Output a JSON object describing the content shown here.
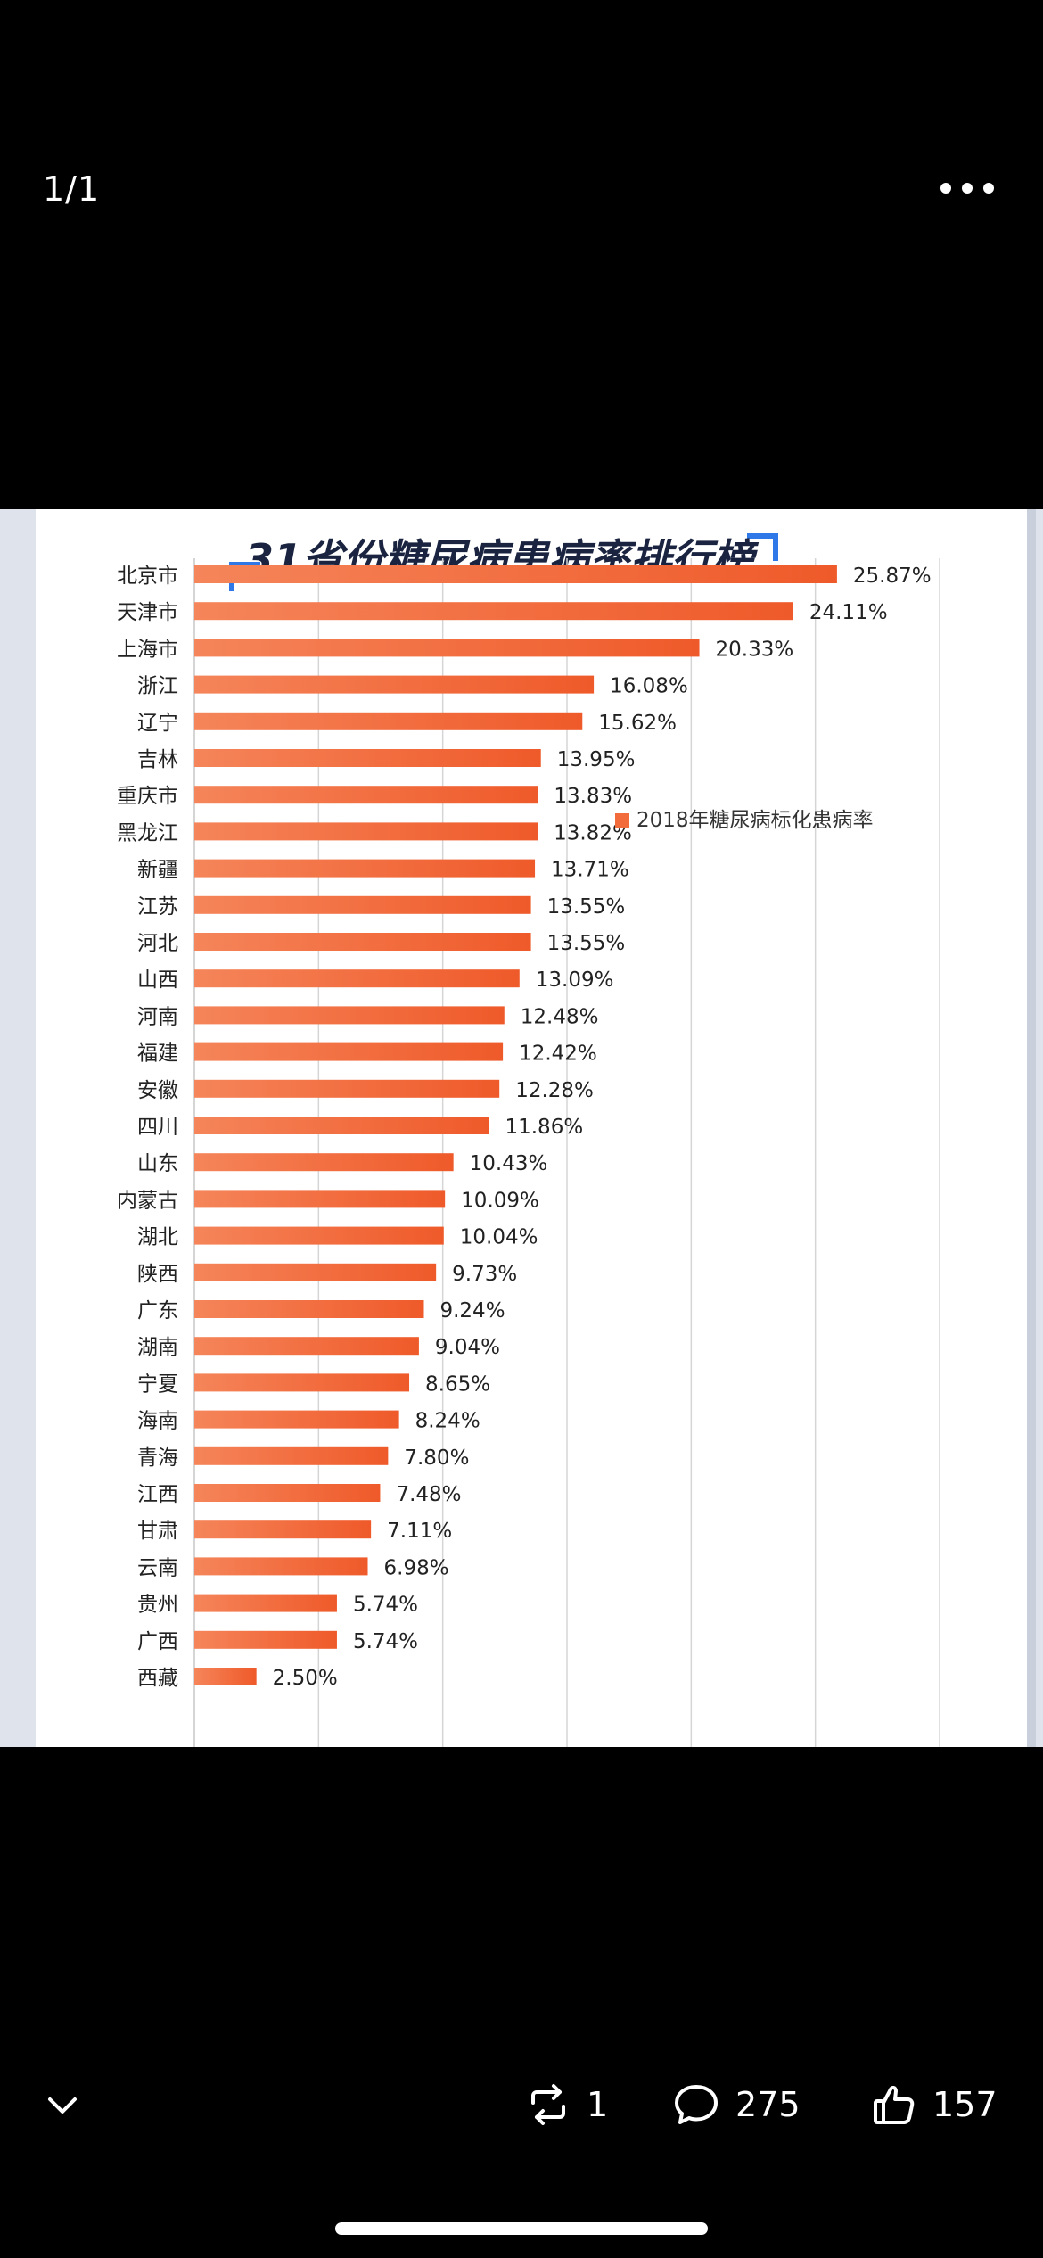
{
  "header": {
    "page_counter": "1/1",
    "more_icon": "more-horizontal-icon"
  },
  "chart_data": {
    "type": "bar",
    "orientation": "horizontal",
    "title": "31省份糖尿病患病率排行榜",
    "legend": {
      "label": "2018年糖尿病标化患病率",
      "position": "right-middle"
    },
    "series": [
      {
        "name": "2018年糖尿病标化患病率",
        "color": "#f26b3a"
      }
    ],
    "categories": [
      "北京市",
      "天津市",
      "上海市",
      "浙江",
      "辽宁",
      "吉林",
      "重庆市",
      "黑龙江",
      "新疆",
      "江苏",
      "河北",
      "山西",
      "河南",
      "福建",
      "安徽",
      "四川",
      "山东",
      "内蒙古",
      "湖北",
      "陕西",
      "广东",
      "湖南",
      "宁夏",
      "海南",
      "青海",
      "江西",
      "甘肃",
      "云南",
      "贵州",
      "广西",
      "西藏"
    ],
    "values": [
      25.87,
      24.11,
      20.33,
      16.08,
      15.62,
      13.95,
      13.83,
      13.82,
      13.71,
      13.55,
      13.55,
      13.09,
      12.48,
      12.42,
      12.28,
      11.86,
      10.43,
      10.09,
      10.04,
      9.73,
      9.24,
      9.04,
      8.65,
      8.24,
      7.8,
      7.48,
      7.11,
      6.98,
      5.74,
      5.74,
      2.5
    ],
    "value_labels": [
      "25.87%",
      "24.11%",
      "20.33%",
      "16.08%",
      "15.62%",
      "13.95%",
      "13.83%",
      "13.82%",
      "13.71%",
      "13.55%",
      "13.55%",
      "13.09%",
      "12.48%",
      "12.42%",
      "12.28%",
      "11.86%",
      "10.43%",
      "10.09%",
      "10.04%",
      "9.73%",
      "9.24%",
      "9.04%",
      "8.65%",
      "8.24%",
      "7.80%",
      "7.48%",
      "7.11%",
      "6.98%",
      "5.74%",
      "5.74%",
      "2.50%"
    ],
    "xlim": [
      0,
      30
    ],
    "grid": true,
    "colors": {
      "bar": "#f26b3a",
      "title": "#1a2440",
      "title_accent": "#2f78e8",
      "background": "#ffffff",
      "grid": "#d5d5d5"
    }
  },
  "actions": {
    "collapse_icon": "chevron-down-icon",
    "repost": {
      "icon": "repost-icon",
      "count": "1"
    },
    "comment": {
      "icon": "comment-icon",
      "count": "275"
    },
    "like": {
      "icon": "thumbs-up-icon",
      "count": "157"
    }
  }
}
